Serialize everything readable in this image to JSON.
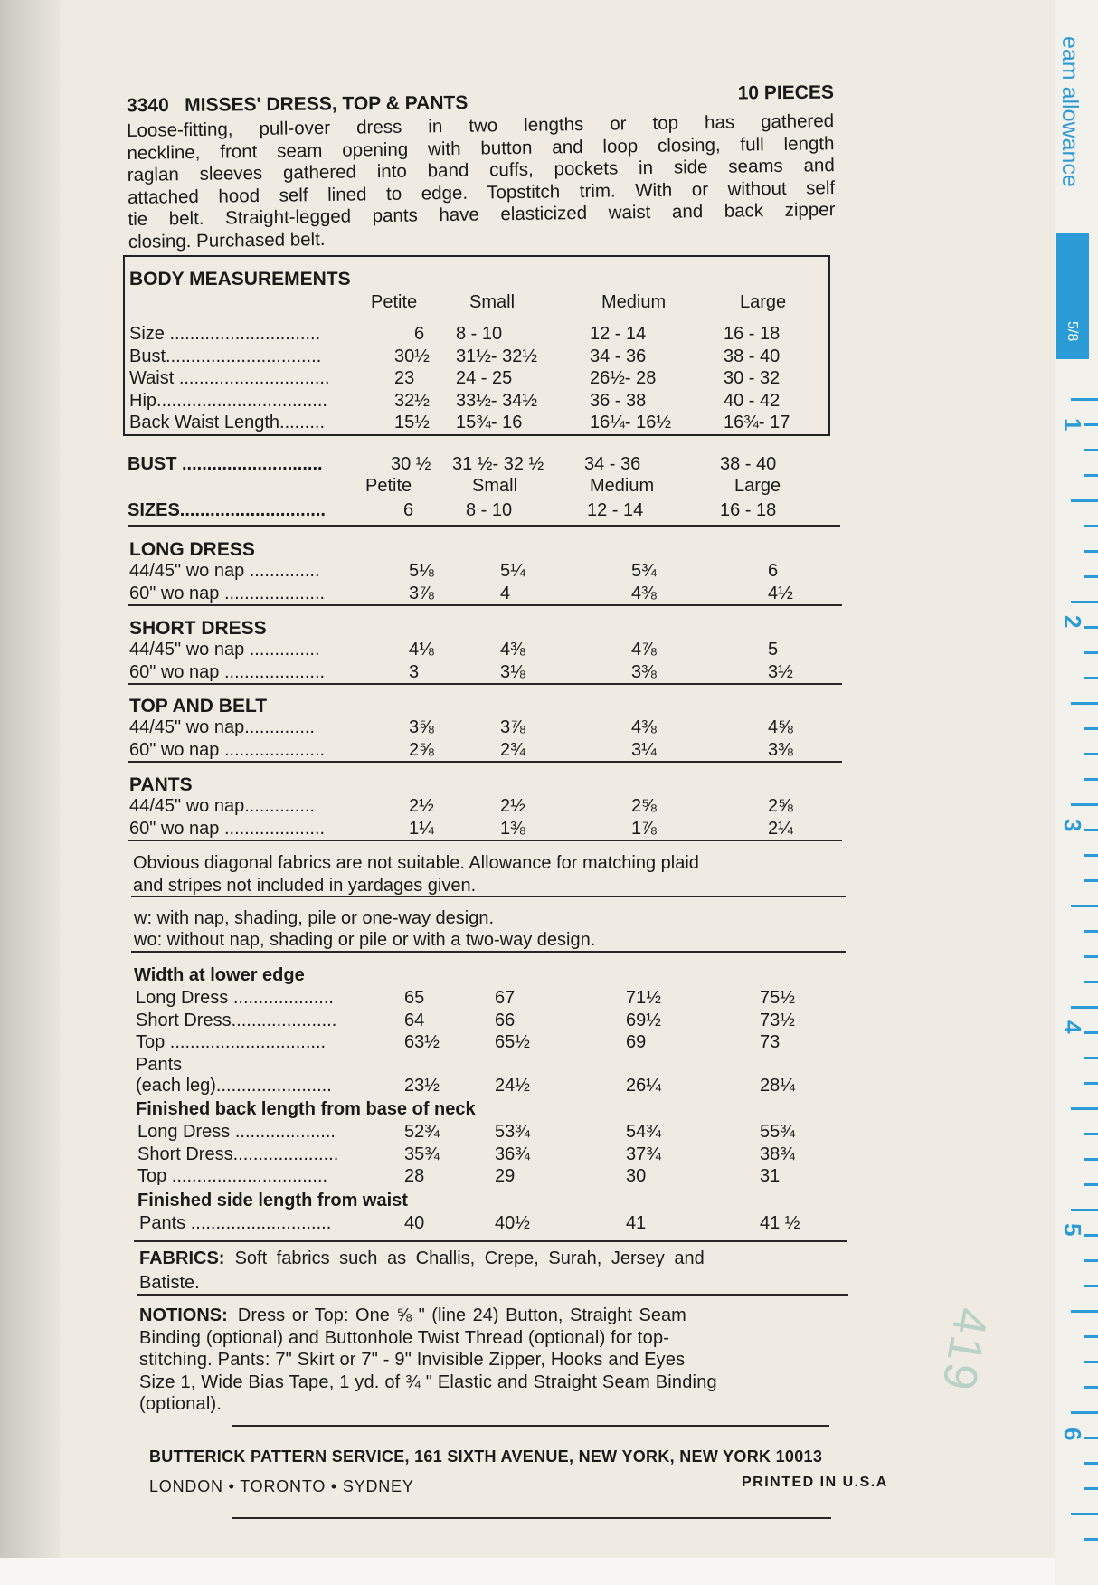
{
  "header": {
    "number": "3340",
    "title": "MISSES' DRESS, TOP & PANTS",
    "pieces": "10 PIECES"
  },
  "description": [
    "Loose-fitting, pull-over dress in two lengths or top has gathered",
    "neckline, front seam opening with button and loop closing, full length",
    "raglan sleeves gathered into band cuffs, pockets in side seams and",
    "attached hood self lined to edge. Topstitch trim. With or without self",
    "tie belt. Straight-legged pants have elasticized waist and back zipper",
    "closing. Purchased belt."
  ],
  "body_measurements": {
    "title": "BODY MEASUREMENTS",
    "groups": [
      "Petite",
      "Small",
      "Medium",
      "Large"
    ],
    "rows": [
      {
        "label": "Size ..............................",
        "values": [
          "6",
          "8  -  10",
          "12  -  14",
          "16  -  18"
        ]
      },
      {
        "label": "Bust...............................",
        "values": [
          "30½",
          "31½-  32½",
          "34  -  36",
          "38  -  40"
        ]
      },
      {
        "label": "Waist ..............................",
        "values": [
          "23",
          "24  -  25",
          "26½-  28",
          "30  -  32"
        ]
      },
      {
        "label": "Hip..................................",
        "values": [
          "32½",
          "33½-  34½",
          "36  -  38",
          "40  -  42"
        ]
      },
      {
        "label": "Back Waist Length.........",
        "values": [
          "15½",
          "15¾-  16",
          "16¼-  16½",
          "16¾-  17"
        ]
      }
    ]
  },
  "sizes_header": {
    "bust_label": "BUST ............................",
    "bust_values": [
      "30 ½",
      "31 ½-  32 ½",
      "34  -  36",
      "38  -  40"
    ],
    "groups": [
      "Petite",
      "Small",
      "Medium",
      "Large"
    ],
    "sizes_label": "SIZES.............................",
    "sizes_values": [
      "6",
      "8  -  10",
      "12  -  14",
      "16  -  18"
    ]
  },
  "yardage": [
    {
      "title": "LONG DRESS",
      "rows": [
        {
          "label": "44/45\" wo nap ..............",
          "values": [
            "5⅛",
            "5¼",
            "5¾",
            "6"
          ]
        },
        {
          "label": "60\" wo nap ....................",
          "values": [
            "3⅞",
            "4",
            "4⅜",
            "4½"
          ]
        }
      ]
    },
    {
      "title": "SHORT DRESS",
      "rows": [
        {
          "label": "44/45\" wo nap ..............",
          "values": [
            "4⅛",
            "4⅜",
            "4⅞",
            "5"
          ]
        },
        {
          "label": "60\" wo nap ....................",
          "values": [
            "3",
            "3⅛",
            "3⅜",
            "3½"
          ]
        }
      ]
    },
    {
      "title": "TOP AND BELT",
      "rows": [
        {
          "label": "44/45\" wo nap..............",
          "values": [
            "3⅝",
            "3⅞",
            "4⅜",
            "4⅝"
          ]
        },
        {
          "label": "60\" wo nap ....................",
          "values": [
            "2⅝",
            "2¾",
            "3¼",
            "3⅜"
          ]
        }
      ]
    },
    {
      "title": "PANTS",
      "rows": [
        {
          "label": "44/45\" wo nap..............",
          "values": [
            "2½",
            "2½",
            "2⅝",
            "2⅝"
          ]
        },
        {
          "label": "60\" wo nap ....................",
          "values": [
            "1¼",
            "1⅜",
            "1⅞",
            "2¼"
          ]
        }
      ]
    }
  ],
  "note_diagonal": [
    "Obvious diagonal fabrics are not suitable. Allowance for matching plaid",
    "and stripes not included in yardages given."
  ],
  "note_nap": [
    "w: with nap, shading, pile or one-way design.",
    "wo: without nap, shading or pile or with a two-way design."
  ],
  "finished": [
    {
      "title": "Width at lower edge",
      "rows": [
        {
          "label": "Long Dress ....................",
          "values": [
            "65",
            "67",
            "71½",
            "75½"
          ]
        },
        {
          "label": "Short Dress.....................",
          "values": [
            "64",
            "66",
            "69½",
            "73½"
          ]
        },
        {
          "label": "Top ...............................",
          "values": [
            "63½",
            "65½",
            "69",
            "73"
          ]
        },
        {
          "label": "Pants",
          "values": []
        },
        {
          "label": "(each leg).......................",
          "values": [
            "23½",
            "24½",
            "26¼",
            "28¼"
          ]
        }
      ]
    },
    {
      "title": "Finished back length from base of neck",
      "rows": [
        {
          "label": "Long Dress ....................",
          "values": [
            "52¾",
            "53¾",
            "54¾",
            "55¾"
          ]
        },
        {
          "label": "Short Dress.....................",
          "values": [
            "35¾",
            "36¾",
            "37¾",
            "38¾"
          ]
        },
        {
          "label": "Top ...............................",
          "values": [
            "28",
            "29",
            "30",
            "31"
          ]
        }
      ]
    },
    {
      "title": "Finished side length from waist",
      "rows": [
        {
          "label": "Pants ............................",
          "values": [
            "40",
            "40½",
            "41",
            "41 ½"
          ]
        }
      ]
    }
  ],
  "fabrics": {
    "label": "FABRICS:",
    "lines": [
      "Soft fabrics such as Challis, Crepe, Surah, Jersey and",
      "Batiste."
    ]
  },
  "notions": {
    "label": "NOTIONS:",
    "lines": [
      "Dress or Top: One ⅝ \" (line 24) Button, Straight Seam",
      "Binding (optional) and Buttonhole Twist Thread (optional) for top-",
      "stitching. Pants: 7\" Skirt or 7\" - 9\" Invisible Zipper, Hooks and Eyes",
      "Size 1, Wide Bias Tape, 1 yd. of ¾ \" Elastic and Straight Seam Binding",
      "(optional)."
    ]
  },
  "footer": {
    "company": "BUTTERICK PATTERN SERVICE, 161 SIXTH AVENUE, NEW YORK, NEW YORK 10013",
    "cities": "LONDON  •  TORONTO  •  SYDNEY",
    "printed": "PRINTED IN U.S.A"
  },
  "stamp": "419",
  "ruler": {
    "label": "eam allowance",
    "fraction": "5/8",
    "numbers": [
      "1",
      "2",
      "3",
      "4",
      "5",
      "6"
    ],
    "color": "#2a9bd6"
  }
}
